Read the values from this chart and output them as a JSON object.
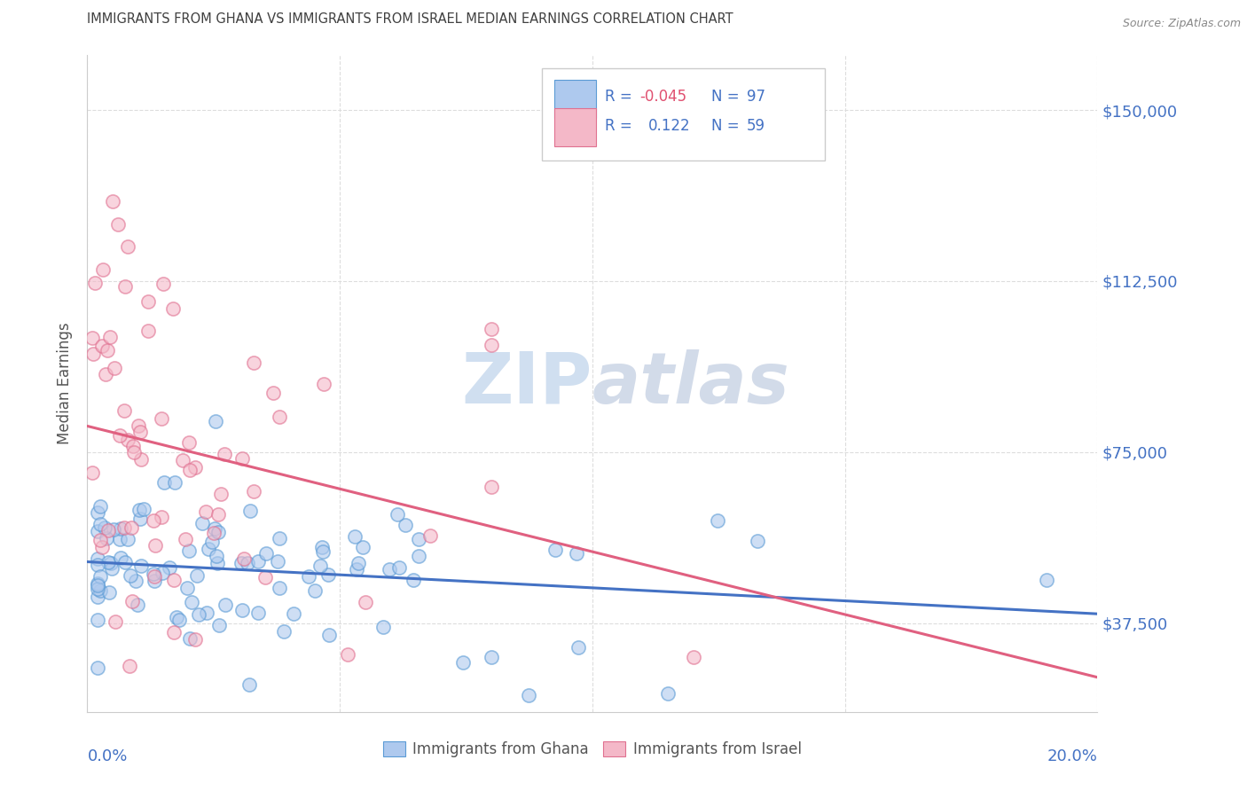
{
  "title": "IMMIGRANTS FROM GHANA VS IMMIGRANTS FROM ISRAEL MEDIAN EARNINGS CORRELATION CHART",
  "source": "Source: ZipAtlas.com",
  "ylabel": "Median Earnings",
  "yticks": [
    37500,
    75000,
    112500,
    150000
  ],
  "ytick_labels": [
    "$37,500",
    "$75,000",
    "$112,500",
    "$150,000"
  ],
  "xlim": [
    0.0,
    0.2
  ],
  "ylim": [
    18000,
    162000
  ],
  "legend_label1": "Immigrants from Ghana",
  "legend_label2": "Immigrants from Israel",
  "color_ghana_fill": "#aec9ee",
  "color_ghana_edge": "#5b9bd5",
  "color_israel_fill": "#f4b8c8",
  "color_israel_edge": "#e07090",
  "color_ghana_line": "#4472c4",
  "color_israel_line": "#e06080",
  "watermark_color": "#d0dff0",
  "title_color": "#404040",
  "axis_label_color": "#4472c4",
  "source_color": "#888888",
  "background_color": "#ffffff",
  "grid_color": "#dddddd",
  "legend_text_color": "#4472c4",
  "legend_r_color1": "#e05070",
  "legend_n_color": "#4472c4"
}
